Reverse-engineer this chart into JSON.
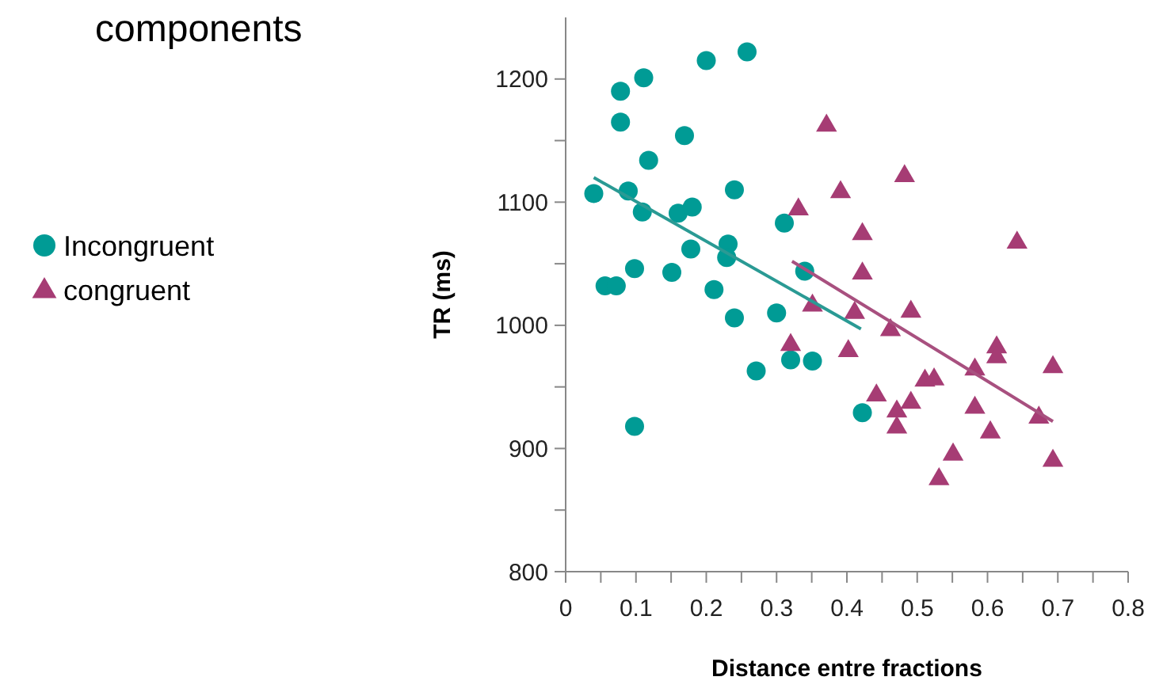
{
  "chart_data": {
    "type": "scatter",
    "title": "components",
    "xlabel": "Distance entre fractions",
    "ylabel": "TR (ms)",
    "xlim": [
      0,
      0.8
    ],
    "ylim": [
      800,
      1250
    ],
    "xticks": [
      0,
      {
        "value": 0.05,
        "label": null
      },
      0.1,
      {
        "value": 0.15,
        "label": null
      },
      0.2,
      {
        "value": 0.25,
        "label": null
      },
      0.3,
      {
        "value": 0.35,
        "label": null
      },
      0.4,
      {
        "value": 0.45,
        "label": null
      },
      0.5,
      {
        "value": 0.55,
        "label": null
      },
      0.6,
      {
        "value": 0.65,
        "label": null
      },
      0.7,
      {
        "value": 0.75,
        "label": null
      },
      0.8
    ],
    "yticks": [
      800,
      {
        "value": 850,
        "label": null
      },
      900,
      {
        "value": 950,
        "label": null
      },
      1000,
      {
        "value": 1050,
        "label": null
      },
      1100,
      {
        "value": 1150,
        "label": null
      },
      1200
    ],
    "grid": false,
    "legend": "left",
    "series": [
      {
        "name": "Incongruent",
        "color": "#009b95",
        "marker": "circle",
        "x": [
          0.258,
          0.2,
          0.111,
          0.078,
          0.078,
          0.169,
          0.118,
          0.04,
          0.089,
          0.24,
          0.109,
          0.16,
          0.18,
          0.311,
          0.178,
          0.231,
          0.229,
          0.098,
          0.151,
          0.056,
          0.072,
          0.211,
          0.34,
          0.24,
          0.3,
          0.271,
          0.32,
          0.351,
          0.098,
          0.422
        ],
        "values": [
          1222,
          1215,
          1201,
          1190,
          1165,
          1154,
          1134,
          1107,
          1109,
          1110,
          1092,
          1091,
          1096,
          1083,
          1062,
          1066,
          1055,
          1046,
          1043,
          1032,
          1032,
          1029,
          1044,
          1006,
          1010,
          963,
          972,
          971,
          918,
          929
        ]
      },
      {
        "name": "congruent",
        "color": "#a63c74",
        "marker": "triangle",
        "x": [
          0.371,
          0.482,
          0.391,
          0.331,
          0.422,
          0.642,
          0.422,
          0.351,
          0.411,
          0.491,
          0.462,
          0.32,
          0.402,
          0.613,
          0.613,
          0.582,
          0.693,
          0.511,
          0.524,
          0.442,
          0.491,
          0.471,
          0.471,
          0.582,
          0.604,
          0.673,
          0.551,
          0.693,
          0.531
        ],
        "values": [
          1163,
          1122,
          1109,
          1095,
          1075,
          1068,
          1043,
          1017,
          1011,
          1012,
          997,
          985,
          980,
          983,
          975,
          965,
          967,
          956,
          957,
          944,
          938,
          931,
          918,
          934,
          914,
          926,
          896,
          891,
          876
        ]
      },
      {
        "type": "line",
        "color": "#2a9a94",
        "marker": "none",
        "x": [
          0.04,
          0.42
        ],
        "values": [
          1120,
          997
        ]
      },
      {
        "type": "line",
        "color": "#a8507f",
        "marker": "none",
        "x": [
          0.322,
          0.693
        ],
        "values": [
          1052,
          922
        ]
      }
    ]
  }
}
